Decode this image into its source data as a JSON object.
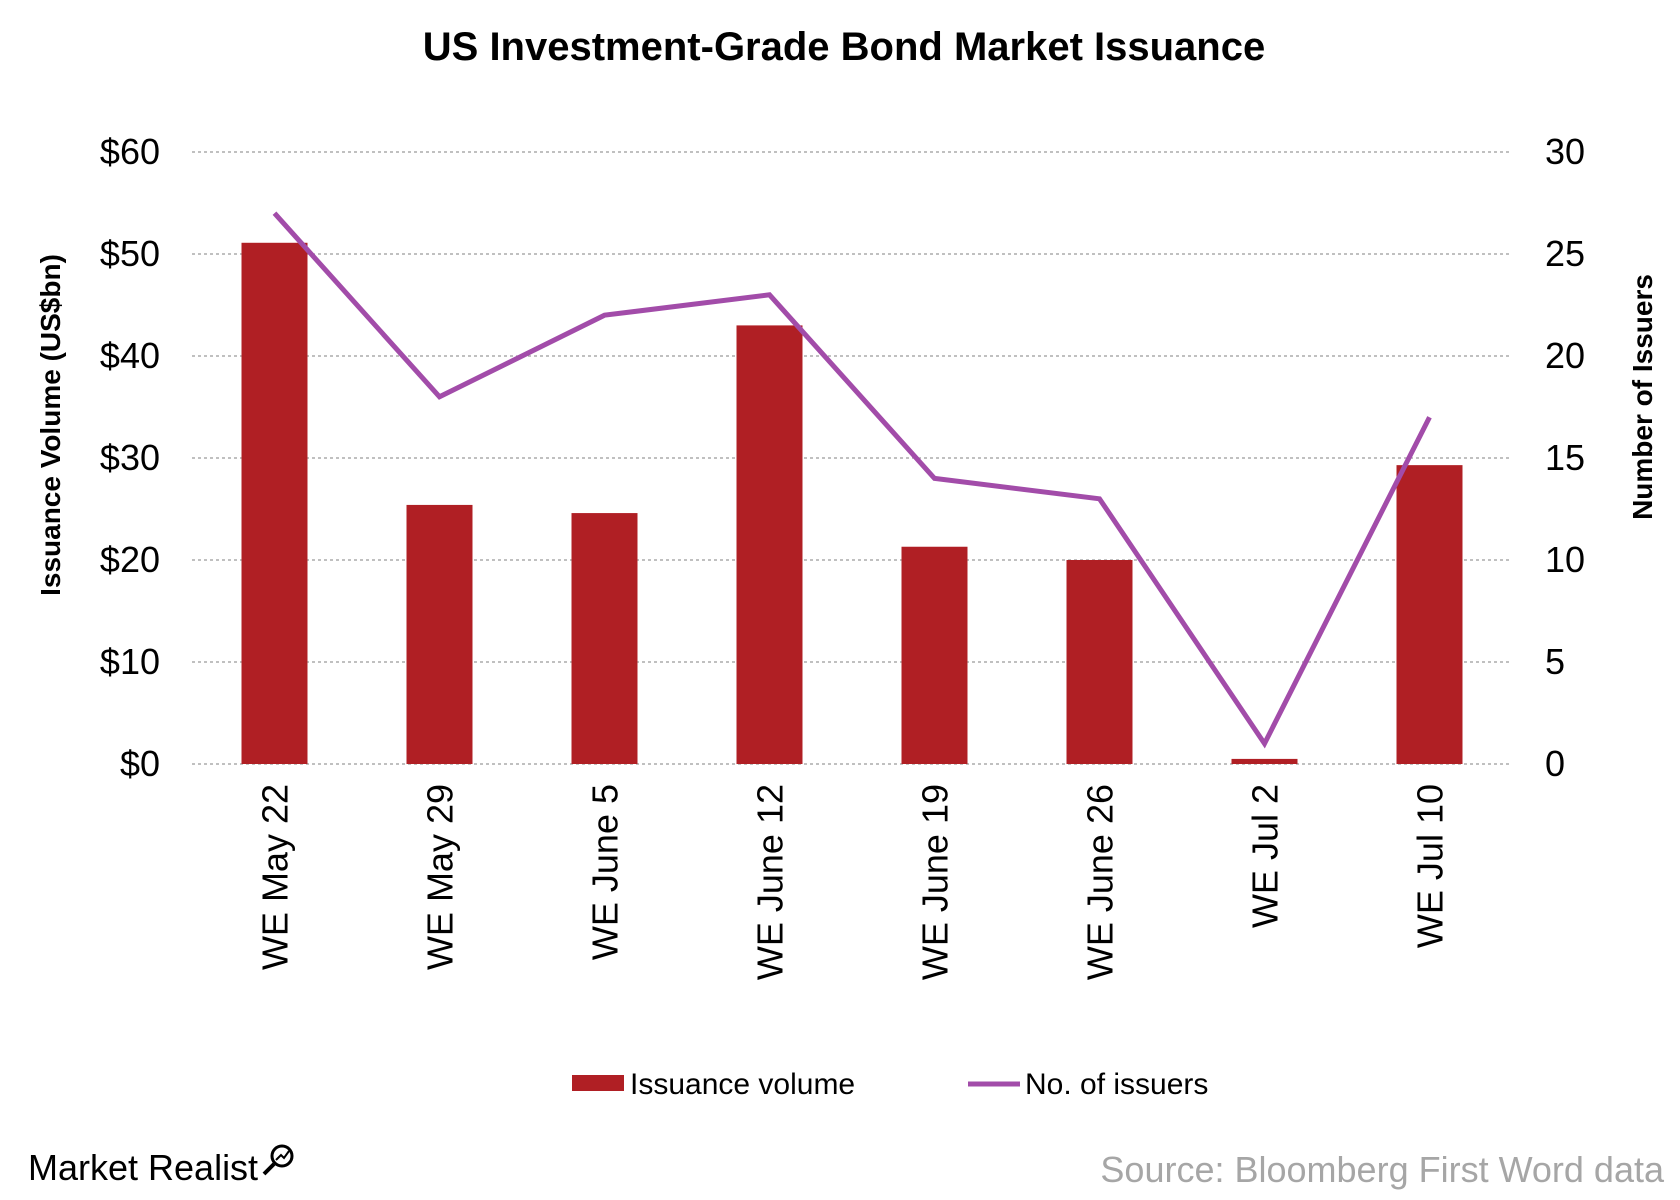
{
  "chart_data": {
    "type": "bar",
    "title": "US Investment-Grade Bond Market Issuance",
    "ylabel": "Issuance Volume (US$bn)",
    "y2label": "Number of Issuers",
    "ylim": [
      0,
      60
    ],
    "y2lim": [
      0,
      30
    ],
    "yticks": [
      "$0",
      "$10",
      "$20",
      "$30",
      "$40",
      "$50",
      "$60"
    ],
    "y2ticks": [
      "0",
      "5",
      "10",
      "15",
      "20",
      "25",
      "30"
    ],
    "grid": true,
    "legend_position": "bottom",
    "categories": [
      "WE May 22",
      "WE May 29",
      "WE June 5",
      "WE June 12",
      "WE June 19",
      "WE June 26",
      "WE Jul 2",
      "WE Jul 10"
    ],
    "series": [
      {
        "name": "Issuance volume",
        "type": "bar",
        "axis": "left",
        "color": "#b01f24",
        "values": [
          51.1,
          25.4,
          24.6,
          43.0,
          21.3,
          20.0,
          0.5,
          29.3
        ]
      },
      {
        "name": "No. of issuers",
        "type": "line",
        "axis": "right",
        "color": "#a24ca9",
        "values": [
          27,
          18,
          22,
          23,
          14,
          13,
          1,
          17
        ]
      }
    ]
  },
  "footer": {
    "brand": "Market Realist",
    "source": "Source: Bloomberg First Word data"
  }
}
